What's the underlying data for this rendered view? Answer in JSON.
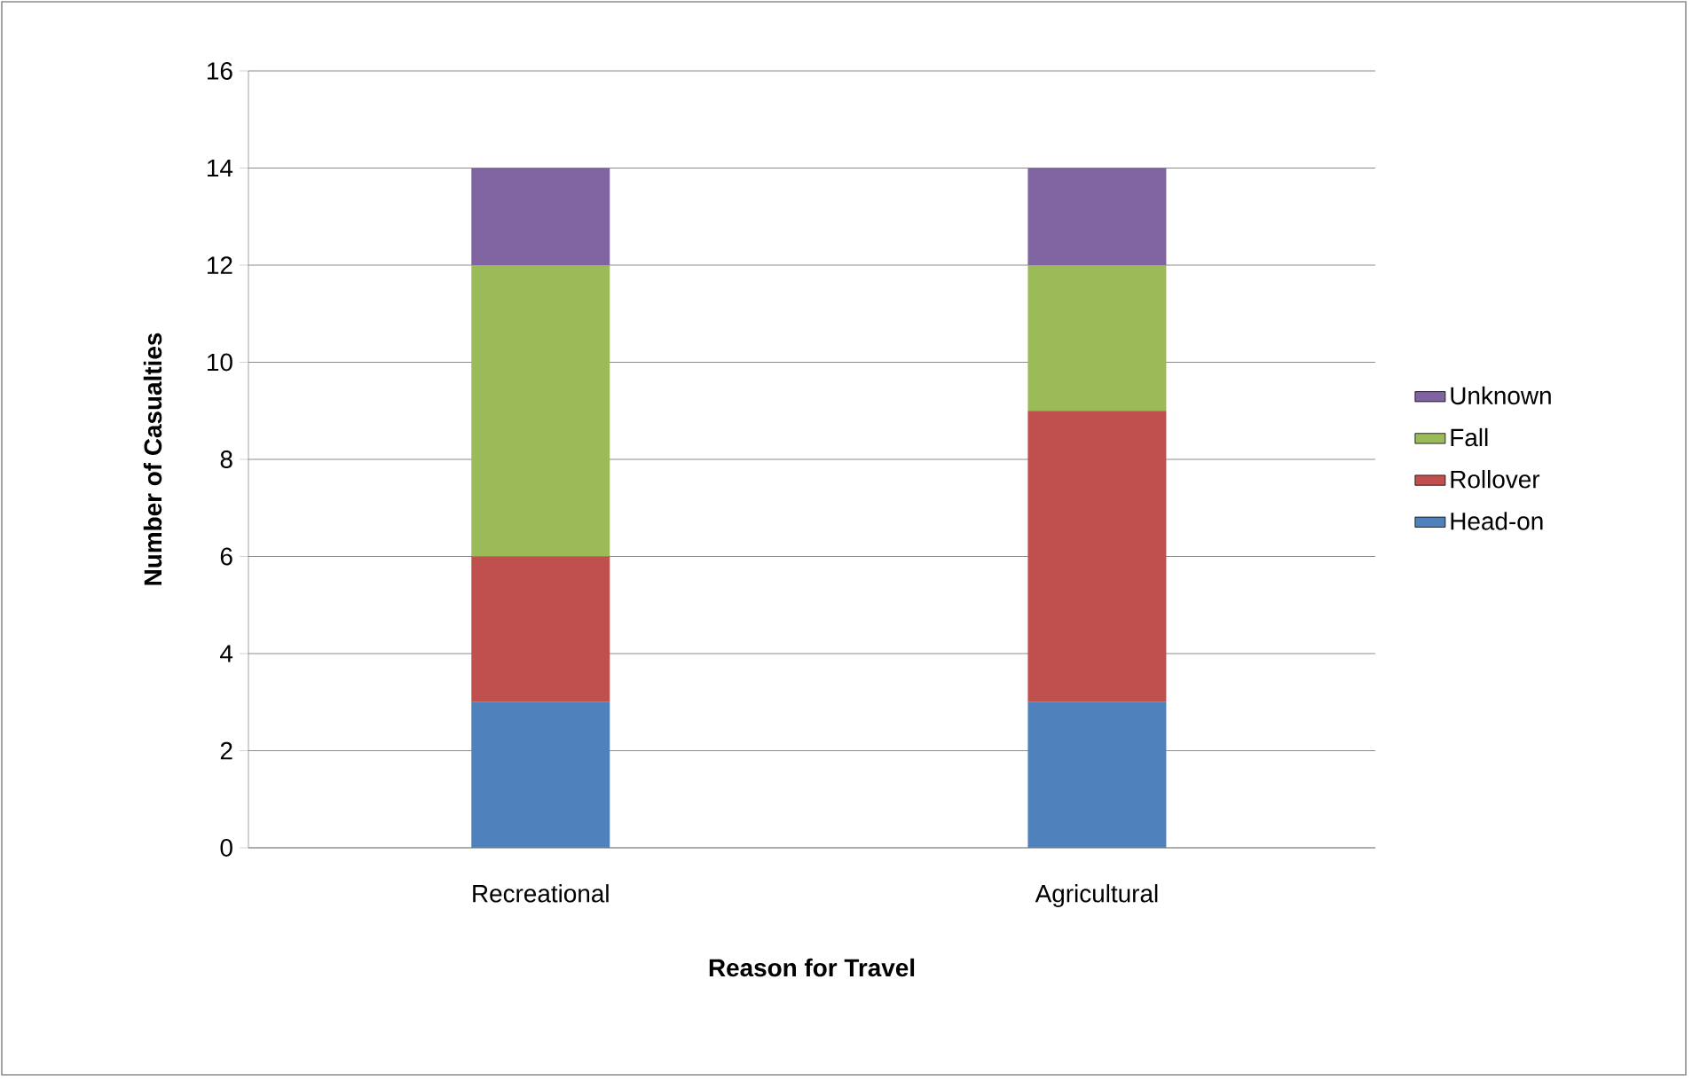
{
  "chart_data": {
    "type": "bar",
    "stacked": true,
    "categories": [
      "Recreational",
      "Agricultural"
    ],
    "series": [
      {
        "name": "Head-on",
        "color": "#4f81bd",
        "values": [
          3,
          3
        ]
      },
      {
        "name": "Rollover",
        "color": "#c0504d",
        "values": [
          3,
          6
        ]
      },
      {
        "name": "Fall",
        "color": "#9bbb59",
        "values": [
          6,
          3
        ]
      },
      {
        "name": "Unknown",
        "color": "#8064a2",
        "values": [
          2,
          2
        ]
      }
    ],
    "ylim": [
      0,
      16
    ],
    "yticks": [
      0,
      2,
      4,
      6,
      8,
      10,
      12,
      14,
      16
    ],
    "grid": "y",
    "legend": "right",
    "xlabel": "Reason for Travel",
    "ylabel": "Number of Casualties"
  }
}
